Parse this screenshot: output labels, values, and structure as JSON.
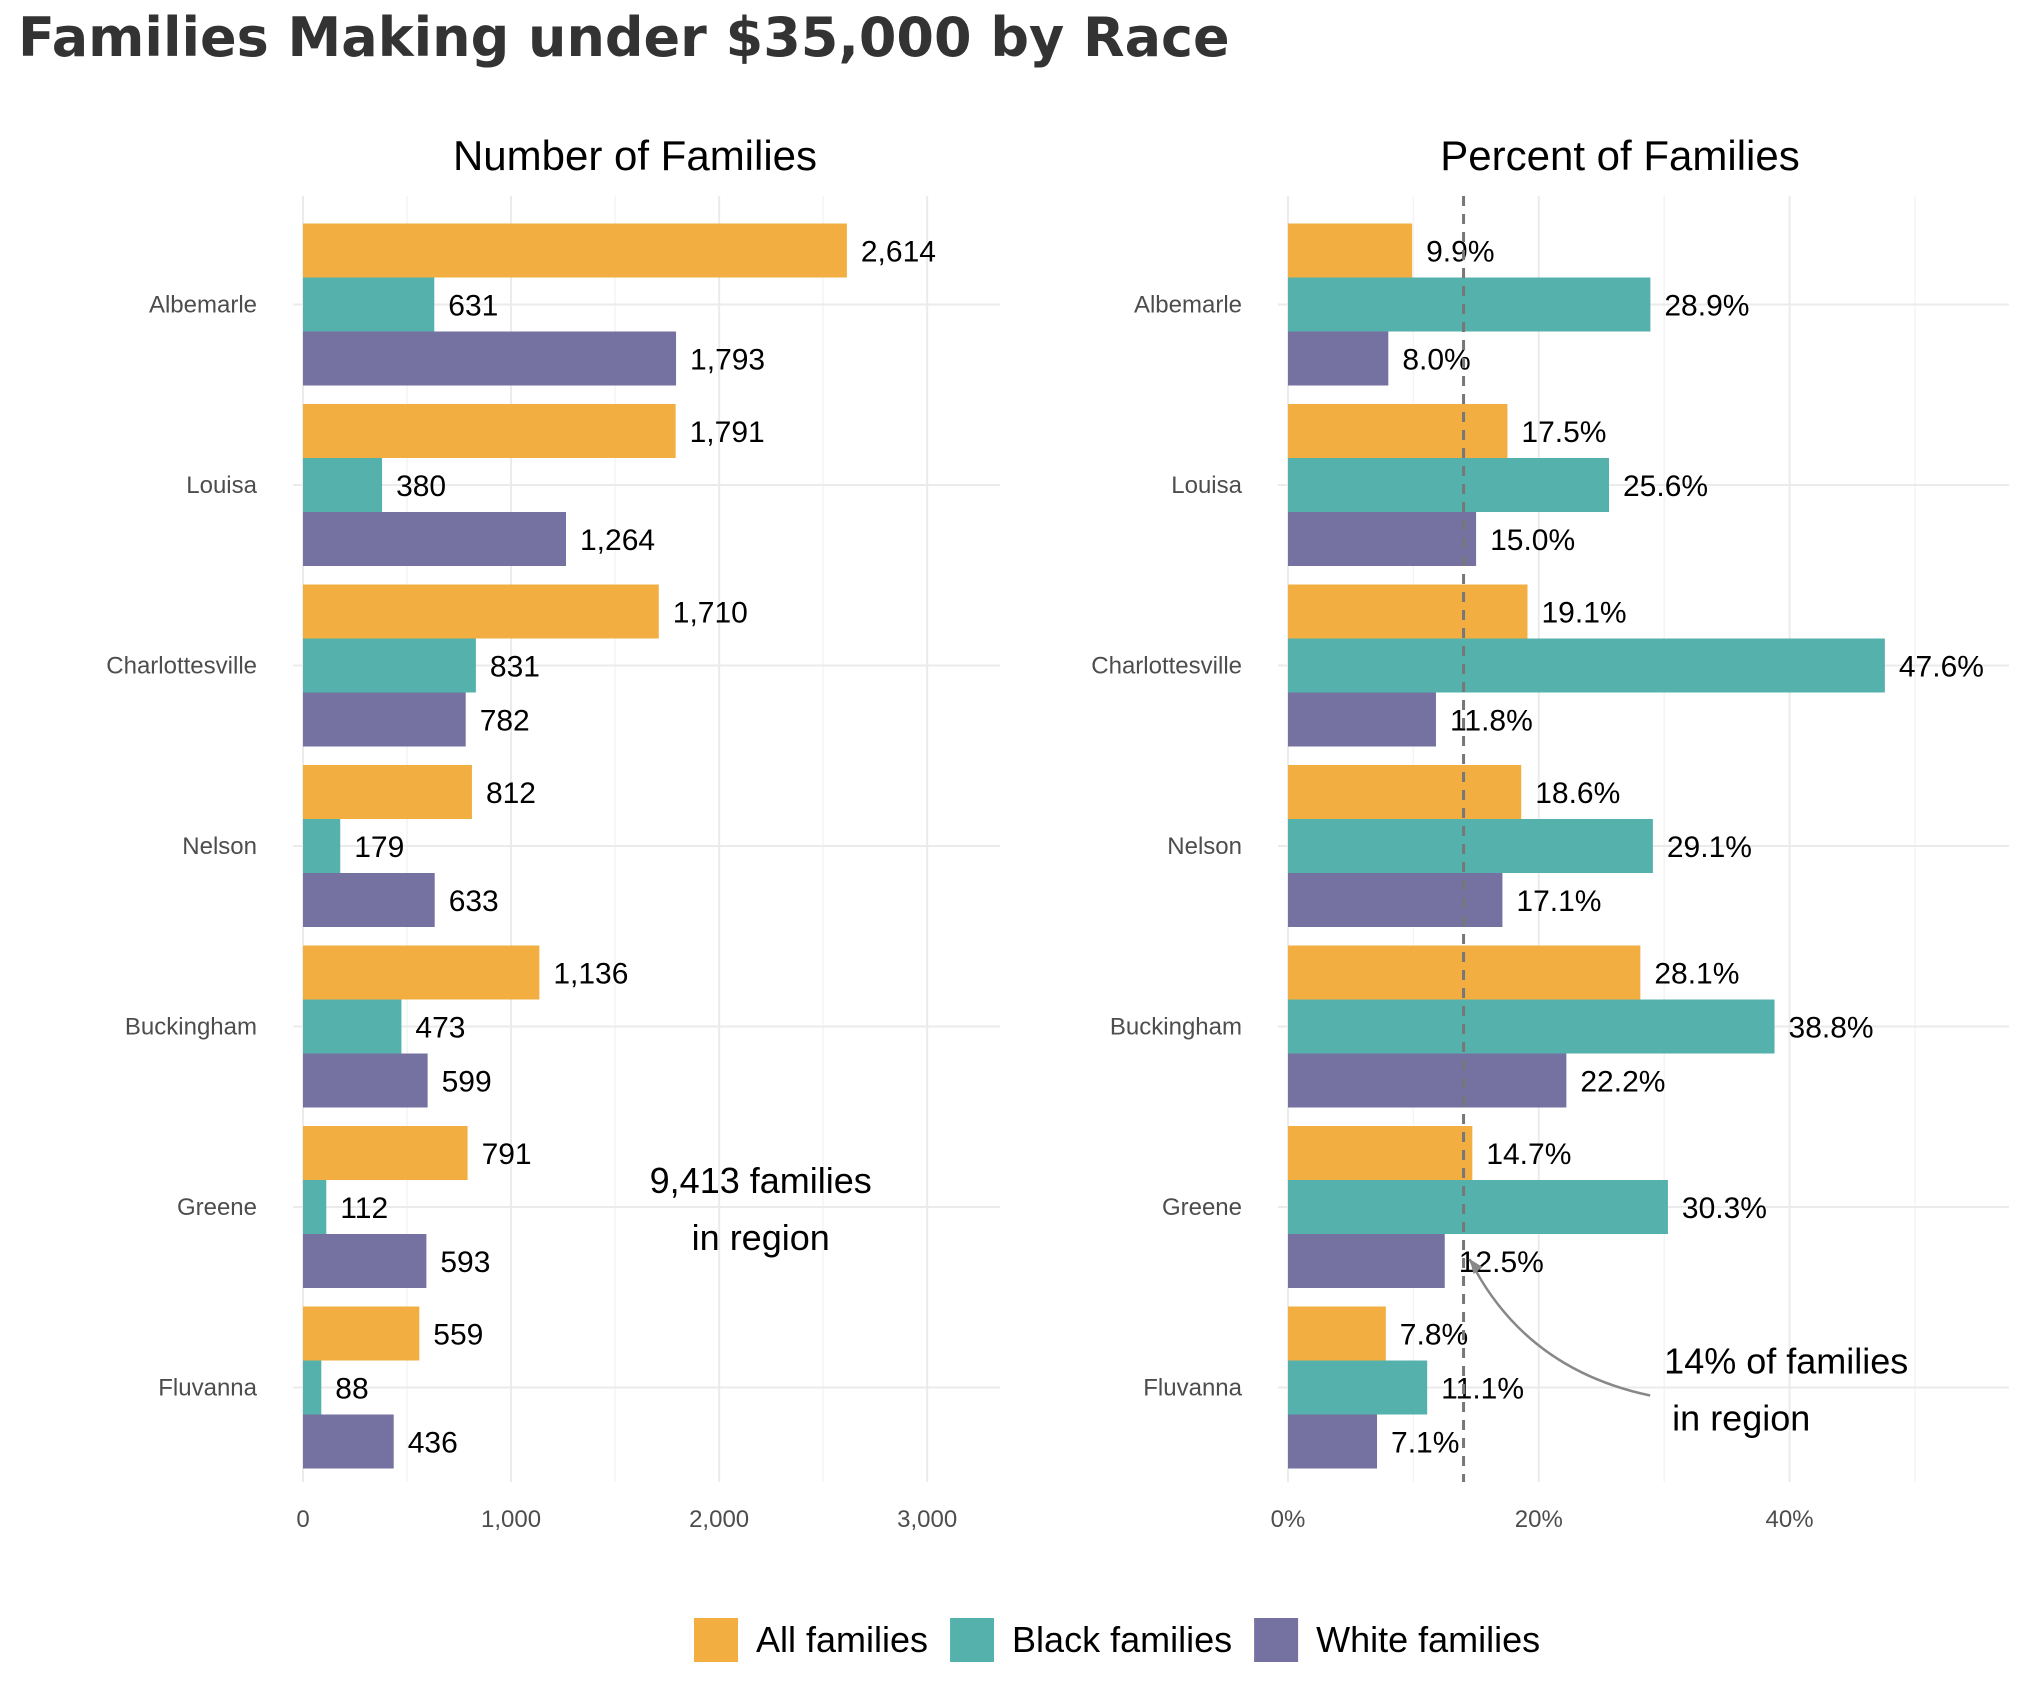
{
  "title": "Families Making under $35,000 by Race",
  "legend": {
    "position": "bottom",
    "items": [
      {
        "label": "All families",
        "color": "#F2AE40"
      },
      {
        "label": "Black families",
        "color": "#55B1AB"
      },
      {
        "label": "White families",
        "color": "#7572A1"
      }
    ]
  },
  "chart_data": [
    {
      "type": "bar",
      "orientation": "horizontal",
      "title": "Number of Families",
      "categories": [
        "Albemarle",
        "Louisa",
        "Charlottesville",
        "Nelson",
        "Buckingham",
        "Greene",
        "Fluvanna"
      ],
      "series": [
        {
          "name": "All families",
          "values": [
            2614,
            1791,
            1710,
            812,
            1136,
            791,
            559
          ],
          "labels": [
            "2,614",
            "1,791",
            "1,710",
            "812",
            "1,136",
            "791",
            "559"
          ]
        },
        {
          "name": "Black families",
          "values": [
            631,
            380,
            831,
            179,
            473,
            112,
            88
          ],
          "labels": [
            "631",
            "380",
            "831",
            "179",
            "473",
            "112",
            "88"
          ]
        },
        {
          "name": "White families",
          "values": [
            1793,
            1264,
            782,
            633,
            599,
            593,
            436
          ],
          "labels": [
            "1,793",
            "1,264",
            "782",
            "633",
            "599",
            "593",
            "436"
          ]
        }
      ],
      "xlim": [
        0,
        3350
      ],
      "xticks": [
        0,
        1000,
        2000,
        3000
      ],
      "xtick_labels": [
        "0",
        "1,000",
        "2,000",
        "3,000"
      ],
      "grid": true,
      "annotations": [
        {
          "lines": [
            "9,413 families",
            "in region"
          ],
          "x": 2200,
          "category": "Greene"
        }
      ]
    },
    {
      "type": "bar",
      "orientation": "horizontal",
      "title": "Percent of Families",
      "categories": [
        "Albemarle",
        "Louisa",
        "Charlottesville",
        "Nelson",
        "Buckingham",
        "Greene",
        "Fluvanna"
      ],
      "series": [
        {
          "name": "All families",
          "values": [
            9.9,
            17.5,
            19.1,
            18.6,
            28.1,
            14.7,
            7.8
          ],
          "labels": [
            "9.9%",
            "17.5%",
            "19.1%",
            "18.6%",
            "28.1%",
            "14.7%",
            "7.8%"
          ]
        },
        {
          "name": "Black families",
          "values": [
            28.9,
            25.6,
            47.6,
            29.1,
            38.8,
            30.3,
            11.1
          ],
          "labels": [
            "28.9%",
            "25.6%",
            "47.6%",
            "29.1%",
            "38.8%",
            "30.3%",
            "11.1%"
          ]
        },
        {
          "name": "White families",
          "values": [
            8.0,
            15.0,
            11.8,
            17.1,
            22.2,
            12.5,
            7.1
          ],
          "labels": [
            "8.0%",
            "15.0%",
            "11.8%",
            "17.1%",
            "22.2%",
            "12.5%",
            "7.1%"
          ]
        }
      ],
      "xlim": [
        0,
        57.5
      ],
      "xticks": [
        0,
        20,
        40
      ],
      "xtick_labels": [
        "0%",
        "20%",
        "40%"
      ],
      "reference_line": {
        "value": 14,
        "style": "dashed"
      },
      "grid": true,
      "annotations": [
        {
          "lines": [
            "14% of families",
            "in region"
          ],
          "x": 30,
          "category": "Fluvanna"
        }
      ]
    }
  ]
}
